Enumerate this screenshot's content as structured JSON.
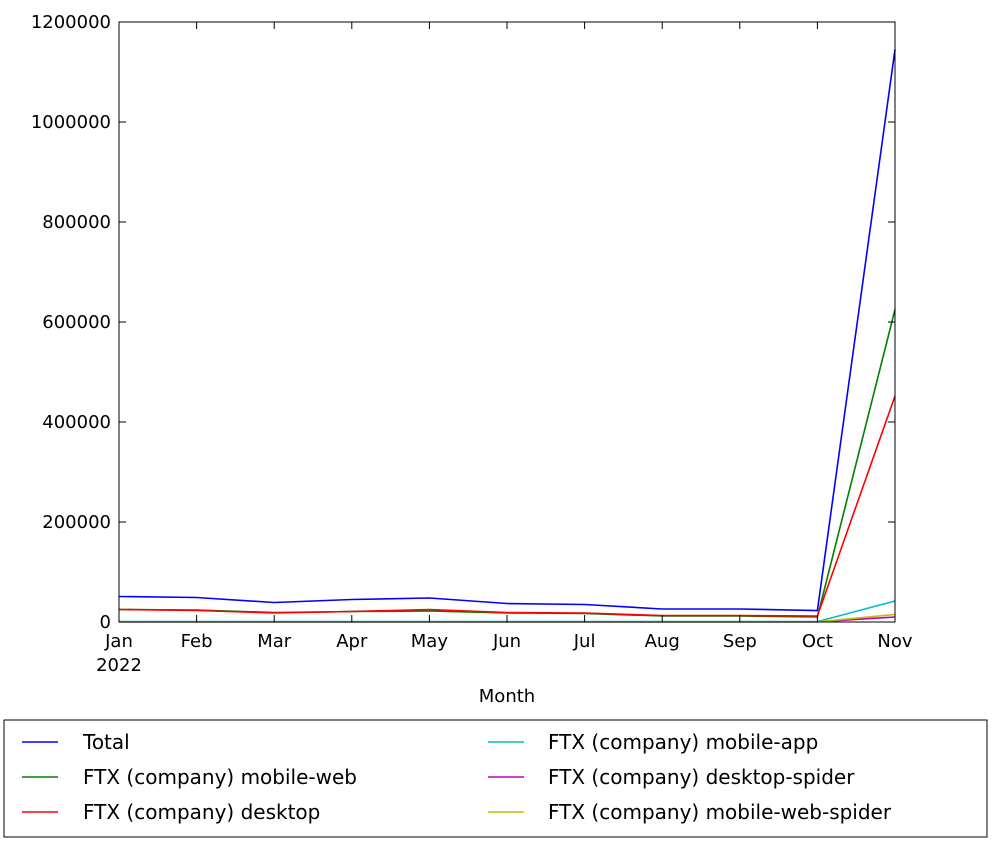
{
  "chart_data": {
    "type": "line",
    "xlabel": "Month",
    "ylabel": "",
    "title": "",
    "categories": [
      "Jan",
      "Feb",
      "Mar",
      "Apr",
      "May",
      "Jun",
      "Jul",
      "Aug",
      "Sep",
      "Oct",
      "Nov"
    ],
    "year_label": "2022",
    "ylim": [
      0,
      1200000
    ],
    "yticks": [
      0,
      200000,
      400000,
      600000,
      800000,
      1000000,
      1200000
    ],
    "ytick_labels": [
      "0",
      "200000",
      "400000",
      "600000",
      "800000",
      "1000000",
      "1200000"
    ],
    "grid": false,
    "legend_position": "bottom",
    "series": [
      {
        "name": "Total",
        "color": "#0000ff",
        "values": [
          51000,
          49000,
          39000,
          45000,
          48000,
          37000,
          35000,
          26000,
          26000,
          23000,
          1145000
        ]
      },
      {
        "name": "FTX (company) mobile-web",
        "color": "#008000",
        "values": [
          25000,
          24000,
          19000,
          21000,
          22000,
          18000,
          17000,
          12000,
          12000,
          10000,
          625000
        ]
      },
      {
        "name": "FTX (company) desktop",
        "color": "#ff0000",
        "values": [
          25000,
          23000,
          18000,
          21000,
          25000,
          19000,
          18000,
          13000,
          13000,
          12000,
          452000
        ]
      },
      {
        "name": "FTX (company) mobile-app",
        "color": "#00bfbf",
        "values": [
          1000,
          1000,
          1000,
          1000,
          1000,
          1000,
          1000,
          800,
          800,
          800,
          42000
        ]
      },
      {
        "name": "FTX (company) desktop-spider",
        "color": "#bf00bf",
        "values": [
          500,
          500,
          500,
          500,
          500,
          500,
          500,
          500,
          500,
          500,
          10000
        ]
      },
      {
        "name": "FTX (company) mobile-web-spider",
        "color": "#bfbf00",
        "values": [
          500,
          500,
          500,
          500,
          500,
          500,
          500,
          500,
          500,
          500,
          15000
        ]
      }
    ]
  }
}
